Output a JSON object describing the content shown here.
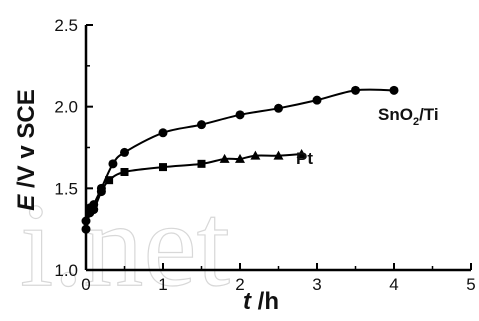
{
  "chart_data": {
    "type": "line",
    "xlabel_italic": "t",
    "xlabel_unit": " /h",
    "ylabel_italic": "E",
    "ylabel_unit": " /V v SCE",
    "xlim": [
      0,
      5
    ],
    "ylim": [
      1.0,
      2.5
    ],
    "x_ticks": [
      "0",
      "1",
      "2",
      "3",
      "4",
      "5"
    ],
    "y_ticks": [
      "1.0",
      "1.5",
      "2.0",
      "2.5"
    ],
    "grid": false,
    "watermark": "i.net",
    "series": [
      {
        "label_main": "SnO",
        "label_sub": "2",
        "label_tail": "/Ti",
        "marker": "circle",
        "x": [
          0,
          0.05,
          0.1,
          0.2,
          0.35,
          0.5,
          1.0,
          1.5,
          2.0,
          2.5,
          3.0,
          3.5,
          4.0
        ],
        "y": [
          1.25,
          1.35,
          1.4,
          1.5,
          1.65,
          1.72,
          1.84,
          1.89,
          1.95,
          1.99,
          2.04,
          2.1,
          2.1
        ]
      },
      {
        "label_main": "Pt",
        "marker": "mixed",
        "x": [
          0,
          0.05,
          0.1,
          0.2,
          0.3,
          0.5,
          1.0,
          1.5,
          1.8,
          2.0,
          2.2,
          2.5,
          2.8
        ],
        "y": [
          1.3,
          1.38,
          1.37,
          1.48,
          1.55,
          1.6,
          1.63,
          1.65,
          1.68,
          1.68,
          1.7,
          1.7,
          1.71
        ]
      }
    ]
  }
}
